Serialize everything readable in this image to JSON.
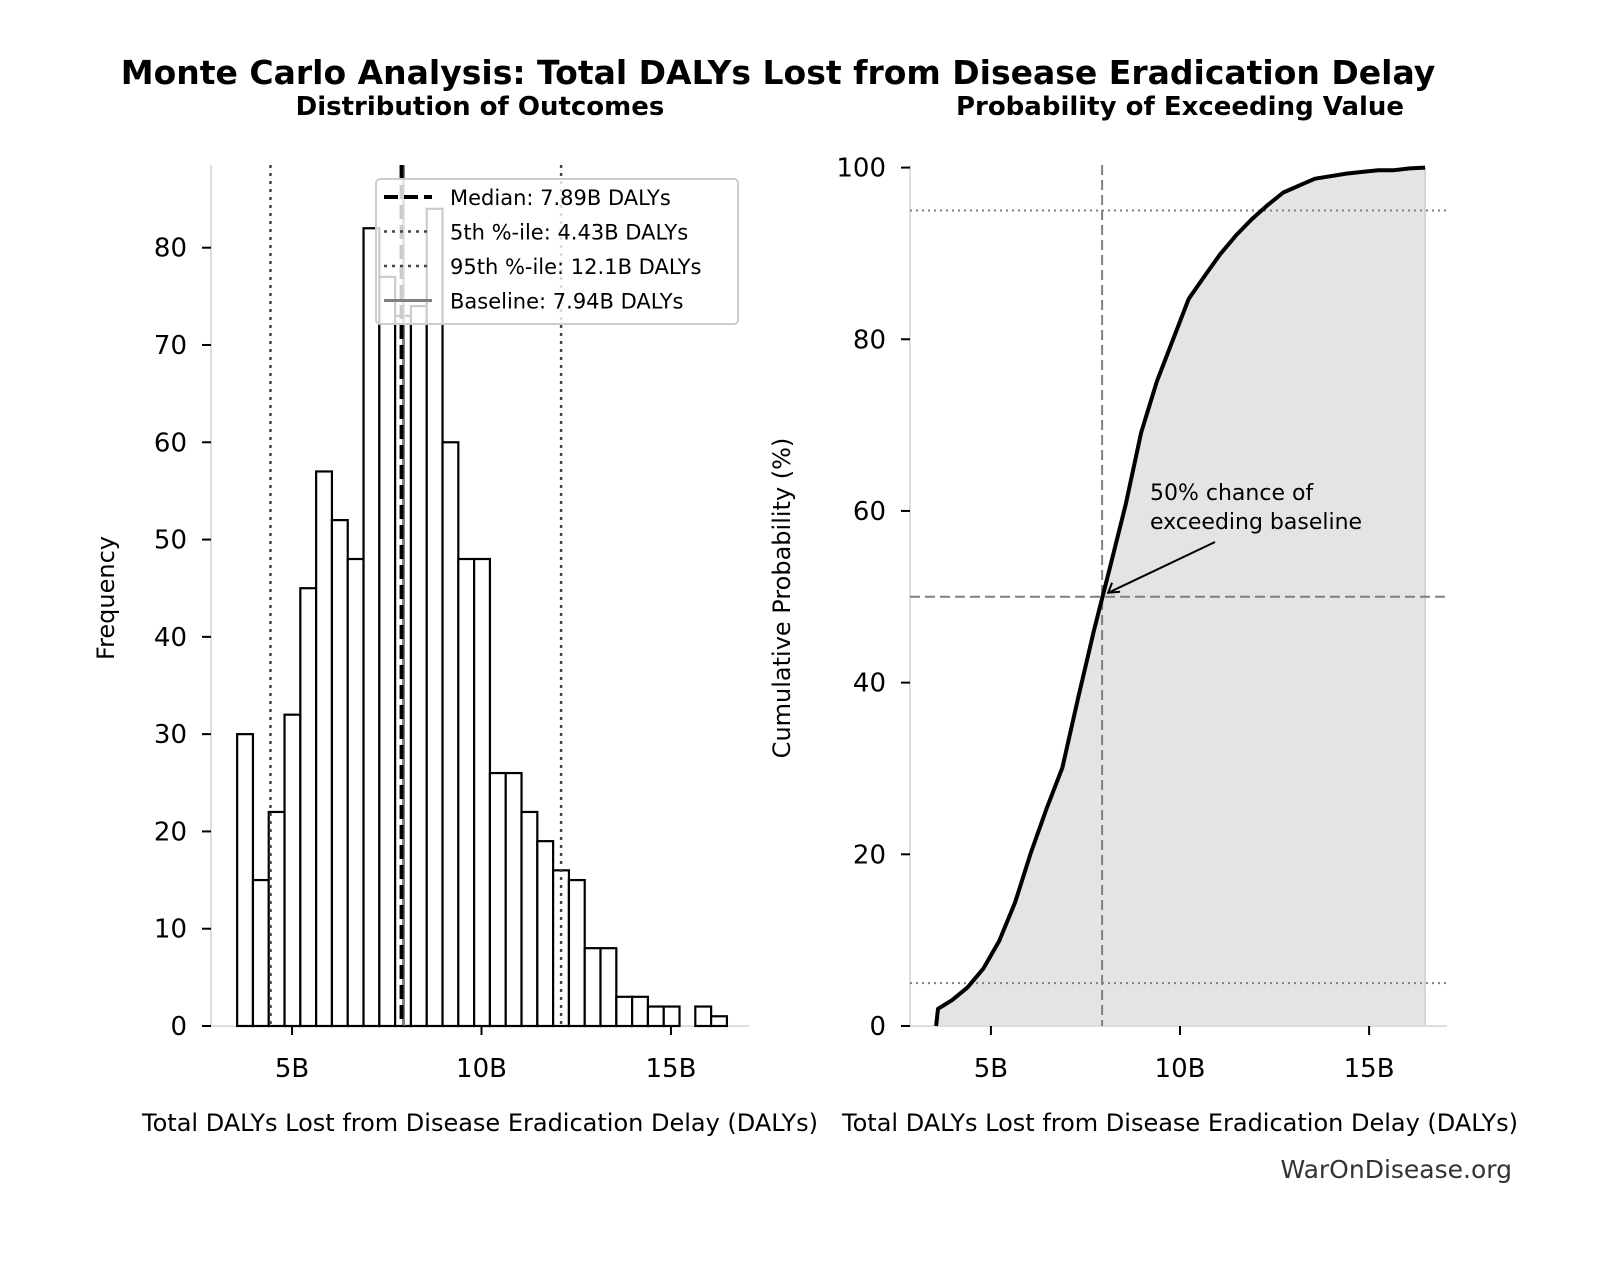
{
  "title": "Monte Carlo Analysis: Total DALYs Lost from Disease Eradication Delay",
  "footer": "WarOnDisease.org",
  "chart_data": [
    {
      "type": "bar",
      "title": "Distribution of Outcomes",
      "xlabel": "Total DALYs Lost from Disease Eradication Delay (DALYs)",
      "ylabel": "Frequency",
      "xlim": [
        2.86,
        17.06
      ],
      "ylim": [
        0,
        88.5
      ],
      "x_unit": "B",
      "xticks": [
        {
          "v": 5,
          "label": "5B"
        },
        {
          "v": 10,
          "label": "10B"
        },
        {
          "v": 15,
          "label": "15B"
        }
      ],
      "yticks": [
        0,
        10,
        20,
        30,
        40,
        50,
        60,
        70,
        80
      ],
      "bin_start": 3.55,
      "bin_width": 0.417,
      "values": [
        30,
        15,
        22,
        32,
        45,
        57,
        52,
        48,
        82,
        77,
        73,
        74,
        84,
        60,
        48,
        48,
        26,
        26,
        22,
        19,
        16,
        15,
        8,
        8,
        3,
        3,
        2,
        2,
        0,
        2,
        1
      ],
      "reference_lines": [
        {
          "name": "Median: 7.89B DALYs",
          "x": 7.89,
          "style": "dashed",
          "color": "#000000"
        },
        {
          "name": "5th %-ile: 4.43B DALYs",
          "x": 4.43,
          "style": "dotted",
          "color": "#444444"
        },
        {
          "name": "95th %-ile: 12.1B DALYs",
          "x": 12.1,
          "style": "dotted",
          "color": "#444444"
        },
        {
          "name": "Baseline: 7.94B DALYs",
          "x": 7.94,
          "style": "solid",
          "color": "#808080"
        }
      ],
      "legend": "top-right",
      "grid": false
    },
    {
      "type": "line",
      "title": "Probability of Exceeding Value",
      "xlabel": "Total DALYs Lost from Disease Eradication Delay (DALYs)",
      "ylabel": "Cumulative Probability (%)",
      "xlim": [
        2.86,
        17.06
      ],
      "ylim": [
        0,
        100.3
      ],
      "xticks": [
        {
          "v": 5,
          "label": "5B"
        },
        {
          "v": 10,
          "label": "10B"
        },
        {
          "v": 15,
          "label": "15B"
        }
      ],
      "yticks": [
        0,
        20,
        40,
        60,
        80,
        100
      ],
      "x": [
        3.55,
        3.6,
        3.97,
        4.38,
        4.8,
        5.22,
        5.64,
        6.05,
        6.47,
        6.89,
        7.31,
        7.72,
        8.14,
        8.56,
        8.97,
        9.39,
        9.81,
        10.23,
        10.64,
        11.06,
        11.48,
        11.9,
        12.31,
        12.73,
        13.15,
        13.57,
        13.98,
        14.4,
        14.82,
        15.24,
        15.65,
        16.07,
        16.48
      ],
      "y": [
        0,
        2.0,
        3.0,
        4.5,
        6.7,
        9.9,
        14.4,
        20.1,
        25.3,
        30.1,
        38.3,
        46.0,
        53.3,
        60.7,
        69.1,
        75.1,
        79.9,
        84.7,
        87.3,
        89.9,
        92.1,
        94.0,
        95.6,
        97.1,
        97.9,
        98.7,
        99.0,
        99.3,
        99.5,
        99.7,
        99.7,
        99.9,
        100
      ],
      "fill_color": "#e4e4e4",
      "hlines": [
        {
          "y": 5,
          "style": "dotted"
        },
        {
          "y": 95,
          "style": "dotted"
        },
        {
          "y": 50,
          "style": "dashed"
        }
      ],
      "vline": {
        "x": 7.94,
        "style": "dashed"
      },
      "annotation": {
        "lines": [
          "50% chance of",
          "exceeding baseline"
        ],
        "x": 7.94,
        "y": 50
      },
      "grid": false
    }
  ]
}
